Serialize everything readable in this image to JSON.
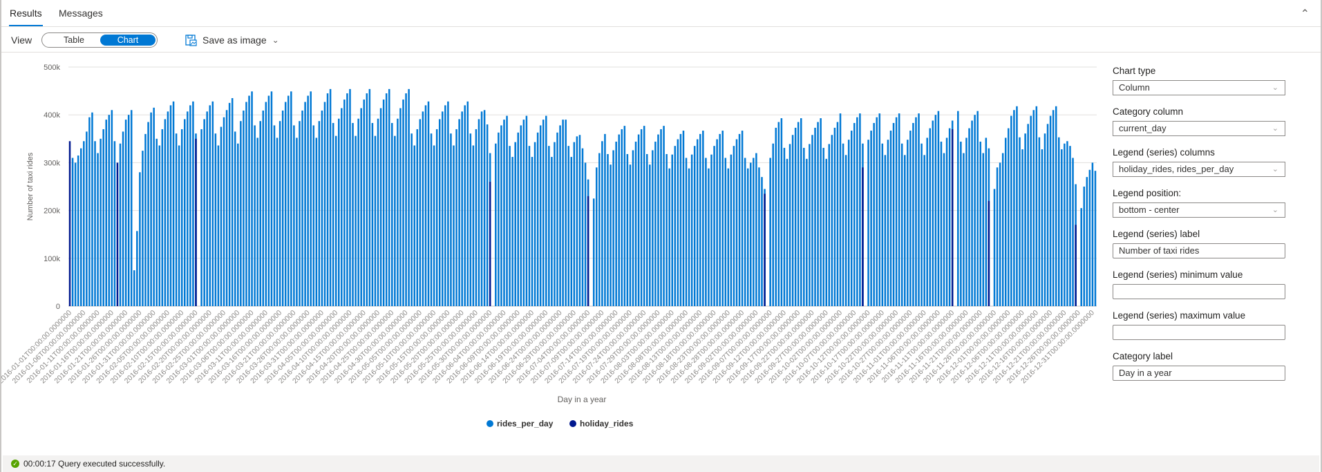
{
  "tabs": [
    {
      "label": "Results",
      "active": true
    },
    {
      "label": "Messages",
      "active": false
    }
  ],
  "toolbar": {
    "view_label": "View",
    "view_options": [
      "Table",
      "Chart"
    ],
    "selected_view": "Chart",
    "save_label": "Save as image"
  },
  "panel": {
    "chart_type": {
      "label": "Chart type",
      "value": "Column"
    },
    "category_column": {
      "label": "Category column",
      "value": "current_day"
    },
    "legend_columns": {
      "label": "Legend (series) columns",
      "value": "holiday_rides, rides_per_day"
    },
    "legend_position": {
      "label": "Legend position:",
      "value": "bottom - center"
    },
    "legend_label": {
      "label": "Legend (series) label",
      "value": "Number of taxi rides"
    },
    "legend_min": {
      "label": "Legend (series) minimum value",
      "value": ""
    },
    "legend_max": {
      "label": "Legend (series) maximum value",
      "value": ""
    },
    "category_label": {
      "label": "Category label",
      "value": "Day in a year"
    }
  },
  "status": {
    "text": "00:00:17 Query executed successfully."
  },
  "colors": {
    "rides_per_day": "#0078d4",
    "holiday_rides": "#00188f",
    "grid": "#e1dfdd"
  },
  "chart_data": {
    "type": "bar",
    "xlabel": "Day in a year",
    "ylabel": "Number of taxi rides",
    "ylim": [
      0,
      500000
    ],
    "yticks": [
      "0",
      "100k",
      "200k",
      "300k",
      "400k",
      "500k"
    ],
    "grid": true,
    "legend_position": "bottom-center",
    "x_start": "2016-01-01",
    "xtick_labels": [
      "2016-01-01T00:00:00.0000000",
      "2016-01-06T00:00:00.0000000",
      "2016-01-11T00:00:00.0000000",
      "2016-01-16T00:00:00.0000000",
      "2016-01-21T00:00:00.0000000",
      "2016-01-26T00:00:00.0000000",
      "2016-01-31T00:00:00.0000000",
      "2016-02-05T00:00:00.0000000",
      "2016-02-10T00:00:00.0000000",
      "2016-02-15T00:00:00.0000000",
      "2016-02-20T00:00:00.0000000",
      "2016-02-25T00:00:00.0000000",
      "2016-03-01T00:00:00.0000000",
      "2016-03-06T00:00:00.0000000",
      "2016-03-11T00:00:00.0000000",
      "2016-03-16T00:00:00.0000000",
      "2016-03-21T00:00:00.0000000",
      "2016-03-26T00:00:00.0000000",
      "2016-03-31T00:00:00.0000000",
      "2016-04-05T00:00:00.0000000",
      "2016-04-10T00:00:00.0000000",
      "2016-04-15T00:00:00.0000000",
      "2016-04-20T00:00:00.0000000",
      "2016-04-25T00:00:00.0000000",
      "2016-04-30T00:00:00.0000000",
      "2016-05-05T00:00:00.0000000",
      "2016-05-10T00:00:00.0000000",
      "2016-05-15T00:00:00.0000000",
      "2016-05-20T00:00:00.0000000",
      "2016-05-25T00:00:00.0000000",
      "2016-05-30T00:00:00.0000000",
      "2016-06-04T00:00:00.0000000",
      "2016-06-09T00:00:00.0000000",
      "2016-06-14T00:00:00.0000000",
      "2016-06-19T00:00:00.0000000",
      "2016-06-24T00:00:00.0000000",
      "2016-06-29T00:00:00.0000000",
      "2016-07-04T00:00:00.0000000",
      "2016-07-09T00:00:00.0000000",
      "2016-07-14T00:00:00.0000000",
      "2016-07-19T00:00:00.0000000",
      "2016-07-24T00:00:00.0000000",
      "2016-07-29T00:00:00.0000000",
      "2016-08-03T00:00:00.0000000",
      "2016-08-08T00:00:00.0000000",
      "2016-08-13T00:00:00.0000000",
      "2016-08-18T00:00:00.0000000",
      "2016-08-23T00:00:00.0000000",
      "2016-08-28T00:00:00.0000000",
      "2016-09-02T00:00:00.0000000",
      "2016-09-07T00:00:00.0000000",
      "2016-09-12T00:00:00.0000000",
      "2016-09-17T00:00:00.0000000",
      "2016-09-22T00:00:00.0000000",
      "2016-09-27T00:00:00.0000000",
      "2016-10-02T00:00:00.0000000",
      "2016-10-07T00:00:00.0000000",
      "2016-10-12T00:00:00.0000000",
      "2016-10-17T00:00:00.0000000",
      "2016-10-22T00:00:00.0000000",
      "2016-10-27T00:00:00.0000000",
      "2016-11-01T00:00:00.0000000",
      "2016-11-06T00:00:00.0000000",
      "2016-11-11T00:00:00.0000000",
      "2016-11-16T00:00:00.0000000",
      "2016-11-21T00:00:00.0000000",
      "2016-11-26T00:00:00.0000000",
      "2016-12-01T00:00:00.0000000",
      "2016-12-06T00:00:00.0000000",
      "2016-12-11T00:00:00.0000000",
      "2016-12-16T00:00:00.0000000",
      "2016-12-21T00:00:00.0000000",
      "2016-12-26T00:00:00.0000000",
      "2016-12-31T00:00:00.0000000"
    ],
    "series": [
      {
        "name": "rides_per_day",
        "values": [
          null,
          310000,
          300000,
          315000,
          330000,
          345000,
          365000,
          395000,
          405000,
          345000,
          320000,
          350000,
          370000,
          390000,
          400000,
          410000,
          345000,
          null,
          340000,
          365000,
          390000,
          400000,
          410000,
          75000,
          157000,
          280000,
          325000,
          360000,
          385000,
          405000,
          415000,
          350000,
          336000,
          370000,
          391000,
          407000,
          420000,
          428000,
          361000,
          336000,
          370000,
          391000,
          407000,
          420000,
          428000,
          361000,
          null,
          370000,
          391000,
          407000,
          420000,
          428000,
          361000,
          336000,
          375000,
          395000,
          410000,
          425000,
          435000,
          365000,
          340000,
          387000,
          409000,
          427000,
          440000,
          449000,
          378000,
          352000,
          387000,
          409000,
          427000,
          440000,
          449000,
          378000,
          352000,
          387000,
          409000,
          427000,
          440000,
          449000,
          378000,
          352000,
          387000,
          409000,
          427000,
          440000,
          449000,
          378000,
          352000,
          387000,
          409000,
          427000,
          445000,
          454000,
          383000,
          356000,
          392000,
          414000,
          432000,
          445000,
          454000,
          383000,
          356000,
          392000,
          414000,
          432000,
          445000,
          454000,
          383000,
          356000,
          392000,
          414000,
          432000,
          445000,
          454000,
          383000,
          356000,
          392000,
          414000,
          432000,
          445000,
          454000,
          361000,
          336000,
          370000,
          391000,
          407000,
          420000,
          428000,
          361000,
          336000,
          370000,
          391000,
          407000,
          420000,
          428000,
          361000,
          336000,
          370000,
          391000,
          407000,
          420000,
          428000,
          361000,
          336000,
          370000,
          391000,
          407000,
          410000,
          380000,
          320000,
          null,
          340000,
          363000,
          378000,
          390000,
          398000,
          335000,
          312000,
          343000,
          363000,
          378000,
          390000,
          398000,
          335000,
          312000,
          343000,
          363000,
          378000,
          390000,
          398000,
          335000,
          312000,
          343000,
          363000,
          378000,
          390000,
          390000,
          335000,
          312000,
          343000,
          355000,
          358000,
          330000,
          300000,
          265000,
          null,
          225000,
          290000,
          320000,
          345000,
          360000,
          318000,
          296000,
          326000,
          344000,
          359000,
          370000,
          377000,
          318000,
          296000,
          326000,
          344000,
          359000,
          370000,
          377000,
          318000,
          296000,
          326000,
          344000,
          359000,
          370000,
          377000,
          318000,
          288000,
          317000,
          335000,
          349000,
          360000,
          367000,
          310000,
          288000,
          317000,
          335000,
          349000,
          360000,
          367000,
          310000,
          288000,
          317000,
          335000,
          349000,
          360000,
          367000,
          310000,
          288000,
          317000,
          335000,
          349000,
          360000,
          367000,
          310000,
          288000,
          300000,
          310000,
          320000,
          290000,
          270000,
          245000,
          null,
          310000,
          340000,
          373000,
          385000,
          393000,
          331000,
          308000,
          339000,
          358000,
          373000,
          385000,
          393000,
          331000,
          308000,
          339000,
          358000,
          373000,
          385000,
          393000,
          331000,
          308000,
          339000,
          358000,
          373000,
          385000,
          403000,
          340000,
          316000,
          348000,
          367000,
          383000,
          395000,
          403000,
          340000,
          null,
          348000,
          367000,
          383000,
          395000,
          403000,
          340000,
          316000,
          348000,
          367000,
          383000,
          395000,
          403000,
          340000,
          316000,
          348000,
          367000,
          383000,
          395000,
          403000,
          340000,
          316000,
          352000,
          372000,
          388000,
          400000,
          408000,
          344000,
          320000,
          352000,
          372000,
          388000,
          null,
          408000,
          344000,
          320000,
          352000,
          372000,
          388000,
          400000,
          408000,
          344000,
          320000,
          352000,
          330000,
          null,
          245000,
          290000,
          300000,
          320000,
          352000,
          372000,
          398000,
          410000,
          418000,
          353000,
          328000,
          361000,
          381000,
          398000,
          410000,
          418000,
          353000,
          328000,
          361000,
          381000,
          398000,
          410000,
          418000,
          353000,
          328000,
          340000,
          345000,
          335000,
          310000,
          255000,
          null,
          205000,
          250000,
          270000,
          285000,
          300000,
          283000
        ]
      },
      {
        "name": "holiday_rides",
        "points": [
          {
            "x": "2016-01-01",
            "y": 345000
          },
          {
            "x": "2016-01-18",
            "y": 300000
          },
          {
            "x": "2016-02-15",
            "y": 350000
          },
          {
            "x": "2016-05-30",
            "y": 260000
          },
          {
            "x": "2016-07-04",
            "y": 230000
          },
          {
            "x": "2016-09-05",
            "y": 235000
          },
          {
            "x": "2016-10-10",
            "y": 290000
          },
          {
            "x": "2016-11-11",
            "y": 370000
          },
          {
            "x": "2016-11-24",
            "y": 220000
          },
          {
            "x": "2016-12-25",
            "y": 170000
          }
        ]
      }
    ]
  }
}
